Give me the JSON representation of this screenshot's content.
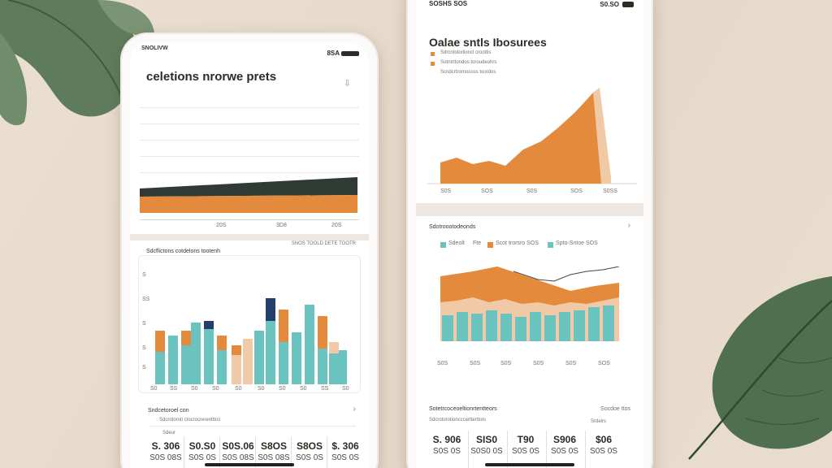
{
  "colors": {
    "orange": "#e38a3d",
    "teal": "#6bc3c0",
    "navy": "#22406b",
    "dark": "#2e3a33",
    "peach": "#f0c9a6",
    "leaf": "#4f6f4f"
  },
  "left_phone": {
    "status_left": "SNOLIVW",
    "status_right": "8SA",
    "title": "celetions nrorwe prets",
    "top_chart": {
      "x_labels": [
        "20S",
        "3D8",
        "20S"
      ]
    },
    "bar_section": {
      "header": "Sdcflictons cotdelons tootenh",
      "header_right": "SNOS TOOLD DETE TOOTR",
      "y_labels": [
        "S",
        "SS",
        "S",
        "S",
        "S"
      ],
      "x_labels": [
        "S0",
        "SS",
        "S0",
        "S0",
        "S0",
        "S0",
        "S0",
        "S0",
        "SS",
        "S0"
      ]
    },
    "stats_section": {
      "header": "Sndcetoroel con",
      "sub": "Sdcrotoroti ctocrocrerentttos",
      "tag": "Sdeur",
      "stats": [
        {
          "top": "S. 306",
          "bottom": "S0S 08S"
        },
        {
          "top": "S0.S0",
          "bottom": "S0S 0S"
        },
        {
          "top": "S0S.06",
          "bottom": "S0S 08S"
        },
        {
          "top": "S8OS",
          "bottom": "S0S 08S"
        },
        {
          "top": "S8OS",
          "bottom": "S0S 0S"
        },
        {
          "top": "$. 306",
          "bottom": "S0S 0S"
        }
      ]
    }
  },
  "right_phone": {
    "status_left": "SOSHS SOS",
    "status_right": "S0.SO",
    "title": "Oalae sntls Ibosurees",
    "legend": [
      "Sdrcntotoriloncl croottis",
      "Sotntrttondos toroudeohrs",
      "Scndcrtrornocoss toordos"
    ],
    "area_chart": {
      "x_labels": [
        "S0S",
        "SOS",
        "S0S",
        "SOS",
        "S0SS"
      ]
    },
    "combo_section": {
      "header": "Sdotroootodeonds",
      "legend": [
        "Sdeolt",
        "Fte",
        "Scot trorsro SOS",
        "Spto-Sntoe SOS"
      ],
      "x_labels": [
        "S0S",
        "S0S",
        "S0S",
        "S0S",
        "S0S",
        "SOS"
      ]
    },
    "stats_section": {
      "header": "Sotetrcoceoeltionrtentteors",
      "header_right": "Socdoe ttos",
      "sub": "Sdcrotorotioncccertterttots",
      "tag": "Srdelrs",
      "stats": [
        {
          "top": "S. 906",
          "bottom": "S0S 0S"
        },
        {
          "top": "SIS0",
          "bottom": "S0S0 0S"
        },
        {
          "top": "T90",
          "bottom": "S0S 0S"
        },
        {
          "top": "S906",
          "bottom": "S0S 0S"
        },
        {
          "top": "$06",
          "bottom": "S0S 0S"
        }
      ]
    }
  }
}
